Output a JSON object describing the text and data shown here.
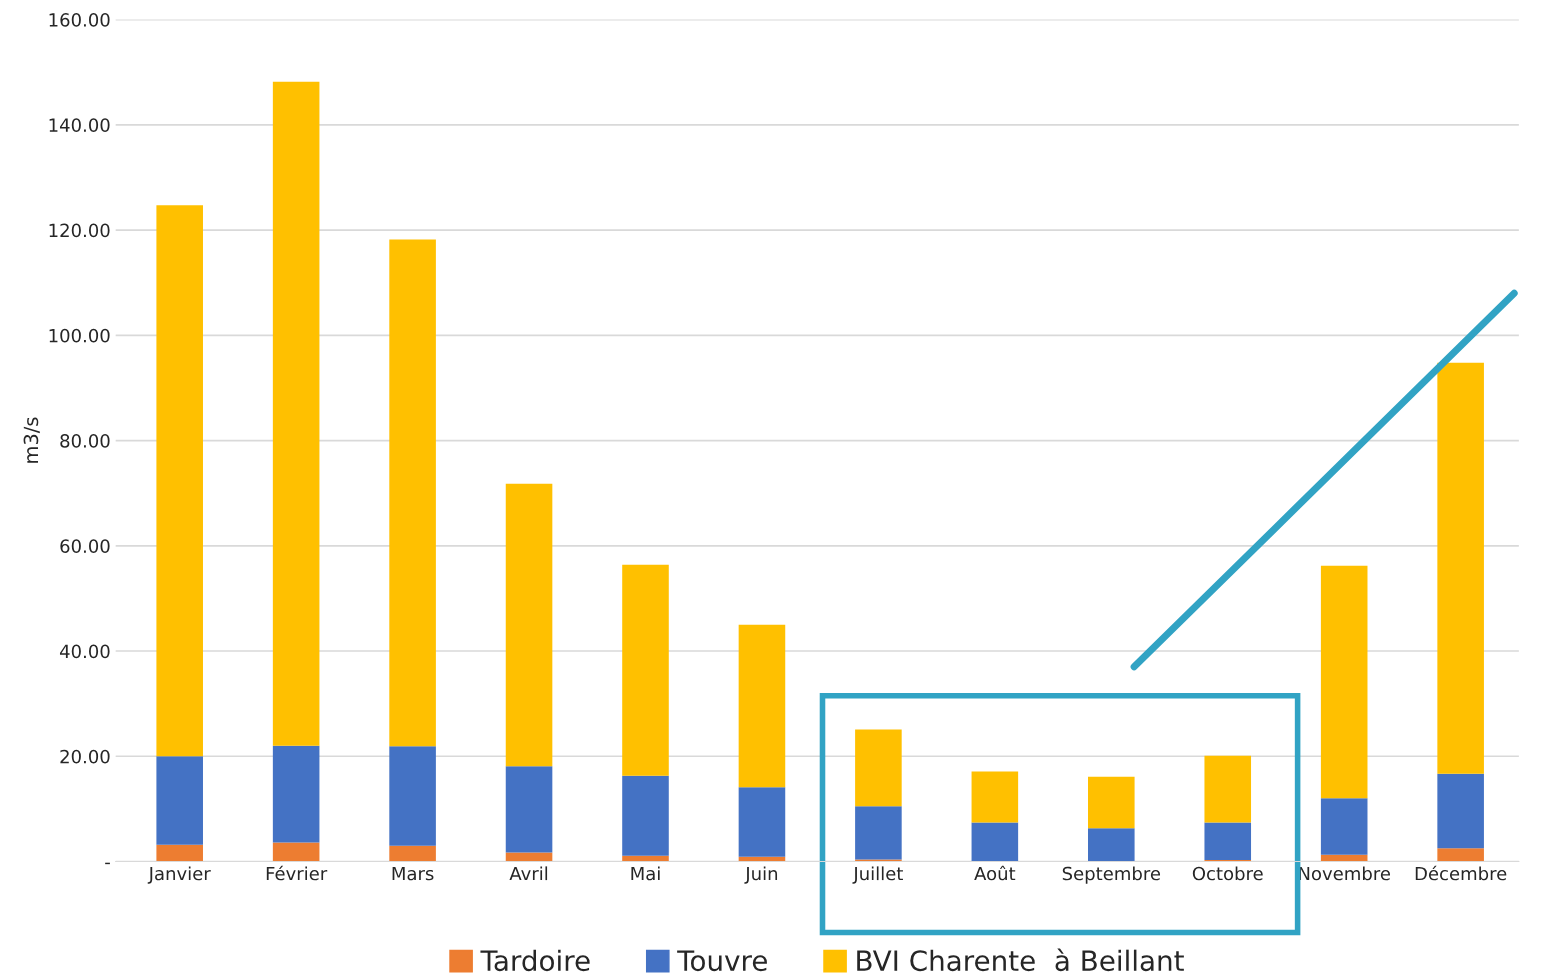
{
  "chart_data": {
    "type": "bar",
    "stacked": true,
    "ylabel": "m3/s",
    "categories": [
      "Janvier",
      "Février",
      "Mars",
      "Avril",
      "Mai",
      "Juin",
      "Juillet",
      "Août",
      "Septembre",
      "Octobre",
      "Novembre",
      "Décembre"
    ],
    "series": [
      {
        "name": "Tardoire",
        "color": "#ed7d31",
        "values": [
          3.2,
          3.6,
          3.0,
          1.7,
          1.1,
          0.9,
          0.4,
          null,
          null,
          0.3,
          1.3,
          2.5
        ]
      },
      {
        "name": "Touvre",
        "color": "#4472c4",
        "values": [
          16.8,
          18.4,
          18.9,
          16.4,
          15.2,
          13.2,
          10.1,
          7.4,
          6.3,
          7.1,
          10.7,
          14.2
        ]
      },
      {
        "name": "BVI Charente  à Beillant",
        "color": "#ffc000",
        "values": [
          104.7,
          126.2,
          96.3,
          53.7,
          40.1,
          30.9,
          14.6,
          9.7,
          9.8,
          12.7,
          44.2,
          78.1
        ]
      }
    ],
    "ylim": [
      0,
      160
    ],
    "yticks": [
      {
        "value": 0,
        "label": "-"
      },
      {
        "value": 20,
        "label": "20.00"
      },
      {
        "value": 40,
        "label": "40.00"
      },
      {
        "value": 60,
        "label": "60.00"
      },
      {
        "value": 80,
        "label": "80.00"
      },
      {
        "value": 100,
        "label": "100.00"
      },
      {
        "value": 120,
        "label": "120.00"
      },
      {
        "value": 140,
        "label": "140.00"
      },
      {
        "value": 160,
        "label": "160.00"
      }
    ],
    "grid": "y",
    "legend": "bottom"
  }
}
